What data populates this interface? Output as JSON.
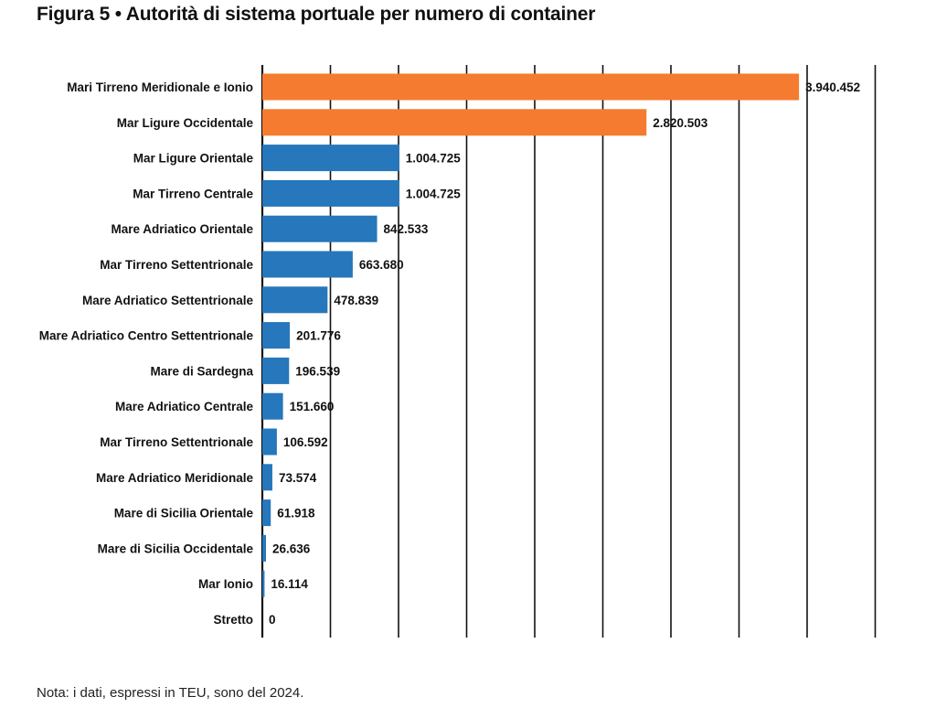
{
  "title": "Figura 5 • Autorità di sistema portuale per numero di container",
  "note": "Nota: i dati, espressi in TEU, sono del 2024.",
  "colors": {
    "highlight": "#f47b2f",
    "bar": "#2677bb",
    "gridline": "#111111"
  },
  "chart_data": {
    "type": "bar",
    "orientation": "horizontal",
    "title": "Figura 5 • Autorità di sistema portuale per numero di container",
    "xlabel": "",
    "ylabel": "",
    "unit": "TEU",
    "xlim": [
      0,
      4500000
    ],
    "grid_step": 500000,
    "grid": true,
    "categories": [
      "Mari Tirreno Meridionale e Ionio",
      "Mar Ligure Occidentale",
      "Mar Ligure Orientale",
      "Mar Tirreno Centrale",
      "Mare Adriatico Orientale",
      "Mar Tirreno Settentrionale",
      "Mare Adriatico Settentrionale",
      "Mare Adriatico Centro Settentrionale",
      "Mare di Sardegna",
      "Mare Adriatico Centrale",
      "Mar Tirreno Settentrionale",
      "Mare Adriatico Meridionale",
      "Mare di Sicilia Orientale",
      "Mare di Sicilia Occidentale",
      "Mar Ionio",
      "Stretto"
    ],
    "values": [
      3940452,
      2820503,
      1004725,
      1004725,
      842533,
      663680,
      478839,
      201776,
      196539,
      151660,
      106592,
      73574,
      61918,
      26636,
      16114,
      0
    ],
    "value_labels": [
      "3.940.452",
      "2.820.503",
      "1.004.725",
      "1.004.725",
      "842.533",
      "663.680",
      "478.839",
      "201.776",
      "196.539",
      "151.660",
      "106.592",
      "73.574",
      "61.918",
      "26.636",
      "16.114",
      "0"
    ],
    "highlighted": [
      true,
      true,
      false,
      false,
      false,
      false,
      false,
      false,
      false,
      false,
      false,
      false,
      false,
      false,
      false,
      false
    ]
  }
}
